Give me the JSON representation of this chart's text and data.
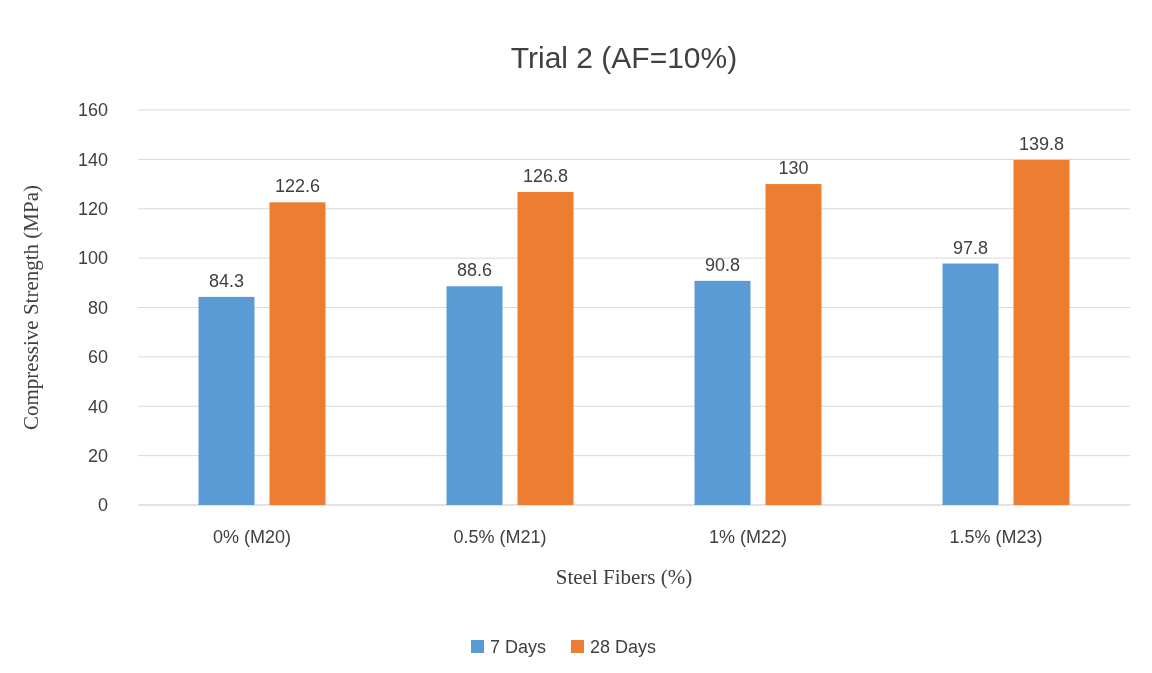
{
  "chart_data": {
    "type": "bar",
    "title": "Trial 2 (AF=10%)",
    "xlabel": "Steel Fibers (%)",
    "ylabel": "Compressive Strength (MPa)",
    "categories": [
      "0% (M20)",
      "0.5% (M21)",
      "1% (M22)",
      "1.5% (M23)"
    ],
    "series": [
      {
        "name": "7 Days",
        "color": "#5b9bd5",
        "values": [
          84.3,
          88.6,
          90.8,
          97.8
        ]
      },
      {
        "name": "28 Days",
        "color": "#ed7d31",
        "values": [
          122.6,
          126.8,
          130,
          139.8
        ]
      }
    ],
    "ylim": [
      0,
      160
    ],
    "yticks": [
      0,
      20,
      40,
      60,
      80,
      100,
      120,
      140,
      160
    ],
    "grid": "y",
    "legend": "bottom",
    "data_labels": true
  }
}
